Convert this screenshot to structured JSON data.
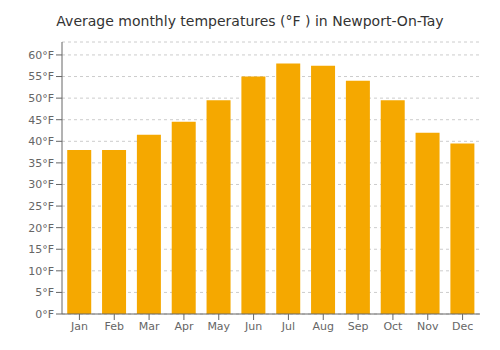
{
  "chart_data": {
    "type": "bar",
    "title": "Average monthly temperatures (°F ) in Newport-On-Tay",
    "categories": [
      "Jan",
      "Feb",
      "Mar",
      "Apr",
      "May",
      "Jun",
      "Jul",
      "Aug",
      "Sep",
      "Oct",
      "Nov",
      "Dec"
    ],
    "values": [
      38,
      38,
      41.5,
      44.5,
      49.5,
      55,
      58,
      57.5,
      54,
      49.5,
      42,
      39.5
    ],
    "color": "#F5A800",
    "ylim": [
      0,
      63
    ],
    "yticks": [
      {
        "value": 0,
        "label": "0°F"
      },
      {
        "value": 5,
        "label": "5°F"
      },
      {
        "value": 10,
        "label": "10°F"
      },
      {
        "value": 15,
        "label": "15°F"
      },
      {
        "value": 20,
        "label": "20°F"
      },
      {
        "value": 25,
        "label": "25°F"
      },
      {
        "value": 30,
        "label": "30°F"
      },
      {
        "value": 35,
        "label": "35°F"
      },
      {
        "value": 40,
        "label": "40°F"
      },
      {
        "value": 45,
        "label": "45°F"
      },
      {
        "value": 50,
        "label": "50°F"
      },
      {
        "value": 55,
        "label": "55°F"
      },
      {
        "value": 60,
        "label": "60°F"
      }
    ],
    "grid": true
  }
}
